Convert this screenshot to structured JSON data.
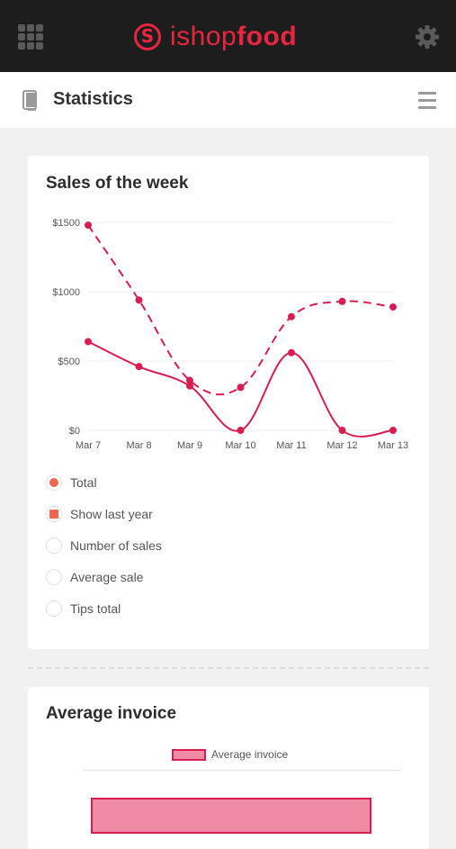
{
  "app": {
    "brand_light": "ishop",
    "brand_bold": "food",
    "brand_color": "#e8263f",
    "topbar_left_icon": "apps-grid-icon",
    "topbar_right_icon": "gear-icon"
  },
  "header": {
    "title": "Statistics",
    "left_icon": "book-icon",
    "right_icon": "hamburger-menu-icon"
  },
  "sales_card": {
    "title": "Sales of the week",
    "legend": [
      {
        "label": "Total",
        "state": "selected",
        "shape": "circle"
      },
      {
        "label": "Show last year",
        "state": "selected",
        "shape": "square"
      },
      {
        "label": "Number of sales",
        "state": "unselected",
        "shape": "circle"
      },
      {
        "label": "Average sale",
        "state": "unselected",
        "shape": "circle"
      },
      {
        "label": "Tips total",
        "state": "unselected",
        "shape": "circle"
      }
    ]
  },
  "average_card": {
    "title": "Average invoice",
    "legend_label": "Average invoice",
    "bar_color": "#f08ba6",
    "bar_border_color": "#d81e50",
    "bar_fraction_of_axis": 0.88
  },
  "chart_data": {
    "type": "line",
    "title": "Sales of the week",
    "categories": [
      "Mar 7",
      "Mar 8",
      "Mar 9",
      "Mar 10",
      "Mar 11",
      "Mar 12",
      "Mar 13"
    ],
    "y_ticks": [
      "$1500",
      "$1000",
      "$500",
      "$0"
    ],
    "ylim": [
      0,
      1500
    ],
    "grid": true,
    "series": [
      {
        "style": "solid",
        "color": "#d81e50",
        "values": [
          640,
          460,
          320,
          0,
          560,
          0,
          0
        ]
      },
      {
        "style": "dashed",
        "color": "#d81e50",
        "values": [
          1480,
          940,
          360,
          310,
          820,
          930,
          890
        ]
      }
    ]
  }
}
